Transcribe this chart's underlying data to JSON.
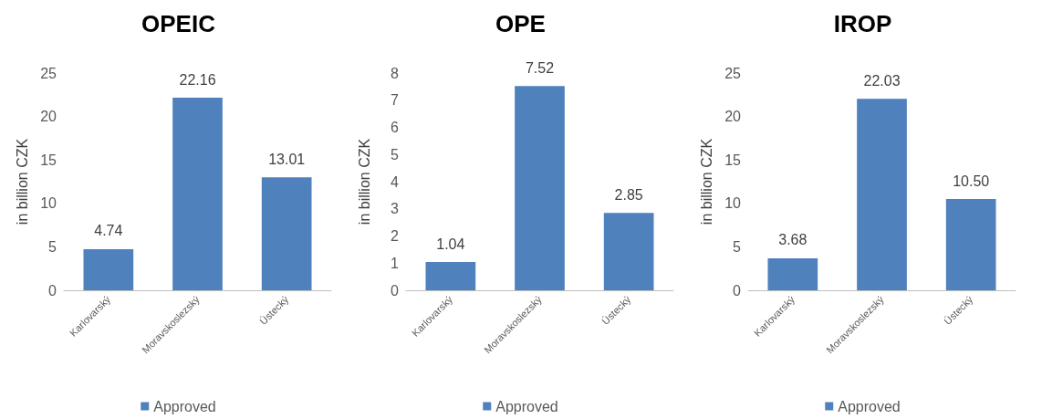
{
  "chart_data": [
    {
      "type": "bar",
      "title": "OPEIC",
      "ylabel": "in billion CZK",
      "categories": [
        "Karlovarský",
        "Moravskoslezský",
        "Ústecký"
      ],
      "series": [
        {
          "name": "Approved",
          "color": "#4f81bd",
          "values": [
            4.74,
            22.16,
            13.01
          ]
        }
      ],
      "value_labels": [
        "4.74",
        "22.16",
        "13.01"
      ],
      "ylim": [
        0,
        25
      ],
      "yticks": [
        0,
        5,
        10,
        15,
        20,
        25
      ],
      "grid": false,
      "legend": "bottom"
    },
    {
      "type": "bar",
      "title": "OPE",
      "ylabel": "in billion CZK",
      "categories": [
        "Karlovarský",
        "Moravskoslezský",
        "Ústecký"
      ],
      "series": [
        {
          "name": "Approved",
          "color": "#4f81bd",
          "values": [
            1.04,
            7.52,
            2.85
          ]
        }
      ],
      "value_labels": [
        "1.04",
        "7.52",
        "2.85"
      ],
      "ylim": [
        0,
        8
      ],
      "yticks": [
        0,
        1,
        2,
        3,
        4,
        5,
        6,
        7,
        8
      ],
      "grid": false,
      "legend": "bottom"
    },
    {
      "type": "bar",
      "title": "IROP",
      "ylabel": "in billion CZK",
      "categories": [
        "Karlovarský",
        "Moravskoslezský",
        "Ústecký"
      ],
      "series": [
        {
          "name": "Approved",
          "color": "#4f81bd",
          "values": [
            3.68,
            22.03,
            10.5
          ]
        }
      ],
      "value_labels": [
        "3.68",
        "22.03",
        "10.50"
      ],
      "ylim": [
        0,
        25
      ],
      "yticks": [
        0,
        5,
        10,
        15,
        20,
        25
      ],
      "grid": false,
      "legend": "bottom"
    }
  ]
}
